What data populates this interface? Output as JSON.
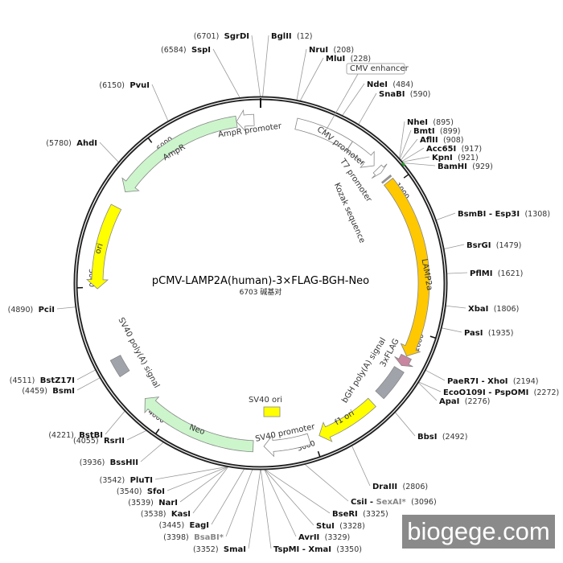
{
  "plasmid": {
    "name": "pCMV-LAMP2A(human)-3×FLAG-BGH-Neo",
    "size_label": "6703 碱基对",
    "length_bp": 6703
  },
  "ticks": [
    "1000",
    "2000",
    "3000",
    "4000",
    "5000",
    "6000"
  ],
  "features": [
    {
      "label": "CMV enhancer",
      "start": 235,
      "end": 614,
      "color": "#ffffff",
      "arrow": "none",
      "boxed": true
    },
    {
      "label": "CMV promoter",
      "start": 615,
      "end": 820,
      "color": "#ffffff",
      "arrow": "forward"
    },
    {
      "label": "T7 promoter",
      "start": 850,
      "end": 885,
      "color": "#ffffff",
      "arrow": "forward"
    },
    {
      "label": "Kozak sequence",
      "start": 935,
      "end": 945,
      "color": "#999999",
      "arrow": "none"
    },
    {
      "label": "LAMP2a",
      "start": 960,
      "end": 2170,
      "color": "#ffc800",
      "arrow": "forward"
    },
    {
      "label": "3xFLAG",
      "start": 2175,
      "end": 2240,
      "color": "#c9869f",
      "arrow": "forward"
    },
    {
      "label": "bGH poly(A) signal",
      "start": 2270,
      "end": 2480,
      "color": "#a0a4aa",
      "arrow": "none"
    },
    {
      "label": "f1 ori",
      "start": 2550,
      "end": 2960,
      "color": "#ffff00",
      "arrow": "forward"
    },
    {
      "label": "SV40 promoter",
      "start": 3030,
      "end": 3330,
      "color": "#ffffff",
      "arrow": "forward"
    },
    {
      "label": "SV40 ori",
      "color": "#ffff00",
      "inner": true
    },
    {
      "label": "Neo",
      "start": 3400,
      "end": 4190,
      "color": "#ccf5cc",
      "arrow": "forward"
    },
    {
      "label": "SV40 poly(A) signal",
      "start": 4400,
      "end": 4520,
      "color": "#a0a4aa",
      "arrow": "none"
    },
    {
      "label": "ori",
      "start": 4990,
      "end": 5545,
      "color": "#ffff00",
      "arrow": "reverse"
    },
    {
      "label": "AmpR",
      "start": 5660,
      "end": 6545,
      "color": "#ccf5cc",
      "arrow": "reverse"
    },
    {
      "label": "AmpR promoter",
      "start": 6545,
      "end": 6660,
      "color": "#ffffff",
      "arrow": "reverse"
    }
  ],
  "enzymes": [
    {
      "names": [
        {
          "t": "SgrDI"
        }
      ],
      "pos": "6701"
    },
    {
      "names": [
        {
          "t": "BglII"
        }
      ],
      "pos": "12"
    },
    {
      "names": [
        {
          "t": "SspI"
        }
      ],
      "pos": "6584"
    },
    {
      "names": [
        {
          "t": "NruI"
        }
      ],
      "pos": "208"
    },
    {
      "names": [
        {
          "t": "MluI"
        }
      ],
      "pos": "228"
    },
    {
      "names": [
        {
          "t": "NdeI"
        }
      ],
      "pos": "484"
    },
    {
      "names": [
        {
          "t": "SnaBI"
        }
      ],
      "pos": "590"
    },
    {
      "names": [
        {
          "t": "PvuI"
        }
      ],
      "pos": "6150"
    },
    {
      "names": [
        {
          "t": "AhdI"
        }
      ],
      "pos": "5780"
    },
    {
      "names": [
        {
          "t": "NheI"
        }
      ],
      "pos": "895"
    },
    {
      "names": [
        {
          "t": "BmtI"
        }
      ],
      "pos": "899"
    },
    {
      "names": [
        {
          "t": "AflII"
        }
      ],
      "pos": "908"
    },
    {
      "names": [
        {
          "t": "Acc65I"
        }
      ],
      "pos": "917"
    },
    {
      "names": [
        {
          "t": "KpnI"
        }
      ],
      "pos": "921"
    },
    {
      "names": [
        {
          "t": "BamHI"
        }
      ],
      "pos": "929"
    },
    {
      "names": [
        {
          "t": "BsmBI"
        },
        {
          "t": "Esp3I"
        }
      ],
      "pos": "1308"
    },
    {
      "names": [
        {
          "t": "BsrGI"
        }
      ],
      "pos": "1479"
    },
    {
      "names": [
        {
          "t": "PflMI"
        }
      ],
      "pos": "1621"
    },
    {
      "names": [
        {
          "t": "XbaI"
        }
      ],
      "pos": "1806"
    },
    {
      "names": [
        {
          "t": "PasI"
        }
      ],
      "pos": "1935"
    },
    {
      "names": [
        {
          "t": "PaeR7I"
        },
        {
          "t": "XhoI"
        }
      ],
      "pos": "2194"
    },
    {
      "names": [
        {
          "t": "EcoO109I"
        },
        {
          "t": "PspOMI"
        }
      ],
      "pos": "2272"
    },
    {
      "names": [
        {
          "t": "ApaI"
        }
      ],
      "pos": "2276"
    },
    {
      "names": [
        {
          "t": "BbsI"
        }
      ],
      "pos": "2492"
    },
    {
      "names": [
        {
          "t": "DraIII"
        }
      ],
      "pos": "2806"
    },
    {
      "names": [
        {
          "t": "CsiI"
        },
        {
          "t": "SexAI*",
          "dim": true
        }
      ],
      "pos": "3096"
    },
    {
      "names": [
        {
          "t": "BseRI"
        }
      ],
      "pos": "3325"
    },
    {
      "names": [
        {
          "t": "StuI"
        }
      ],
      "pos": "3328"
    },
    {
      "names": [
        {
          "t": "AvrII"
        }
      ],
      "pos": "3329"
    },
    {
      "names": [
        {
          "t": "TspMI"
        },
        {
          "t": "XmaI"
        }
      ],
      "pos": "3350"
    },
    {
      "names": [
        {
          "t": "SmaI"
        }
      ],
      "pos": "3352"
    },
    {
      "names": [
        {
          "t": "BsaBI*",
          "dim": true
        }
      ],
      "pos": "3398"
    },
    {
      "names": [
        {
          "t": "EagI"
        }
      ],
      "pos": "3445"
    },
    {
      "names": [
        {
          "t": "KasI"
        }
      ],
      "pos": "3538"
    },
    {
      "names": [
        {
          "t": "NarI"
        }
      ],
      "pos": "3539"
    },
    {
      "names": [
        {
          "t": "SfoI"
        }
      ],
      "pos": "3540"
    },
    {
      "names": [
        {
          "t": "PluTI"
        }
      ],
      "pos": "3542"
    },
    {
      "names": [
        {
          "t": "BssHII"
        }
      ],
      "pos": "3936"
    },
    {
      "names": [
        {
          "t": "RsrII"
        }
      ],
      "pos": "4055"
    },
    {
      "names": [
        {
          "t": "BstBI"
        }
      ],
      "pos": "4221"
    },
    {
      "names": [
        {
          "t": "BstZ17I"
        }
      ],
      "pos": "4511"
    },
    {
      "names": [
        {
          "t": "BsmI"
        }
      ],
      "pos": "4459"
    },
    {
      "names": [
        {
          "t": "PciI"
        }
      ],
      "pos": "4890"
    }
  ],
  "watermark": "biogege.com"
}
